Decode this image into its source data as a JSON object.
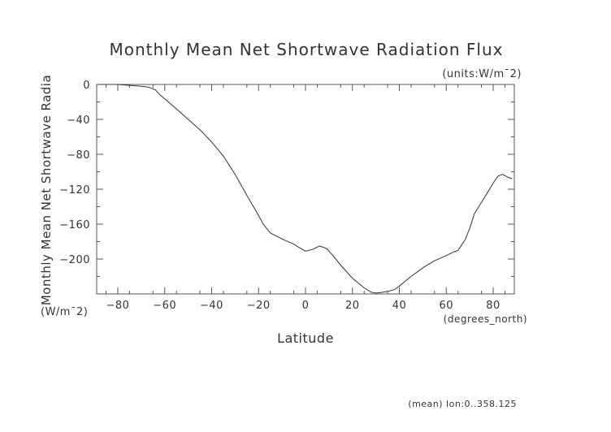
{
  "chart_data": {
    "type": "line",
    "title": "Monthly Mean Net Shortwave Radiation Flux",
    "units_note": "(units:W/m¯2)",
    "xlabel": "Latitude",
    "xunits": "(degrees_north)",
    "ylabel": "Monthly Mean Net Shortwave Radia",
    "yunits": "(W/m¯2)",
    "footnote": "(mean) lon:0..358.125",
    "xlim": [
      -89,
      89
    ],
    "ylim": [
      -240,
      0
    ],
    "xticks": [
      -80,
      -60,
      -40,
      -20,
      0,
      20,
      40,
      60,
      80
    ],
    "yticks": [
      0,
      -40,
      -80,
      -120,
      -160,
      -200
    ],
    "grid": false,
    "series": [
      {
        "x": [
          -88,
          -80,
          -75,
          -70,
          -67,
          -64,
          -62,
          -55,
          -50,
          -45,
          -40,
          -35,
          -30,
          -25,
          -20,
          -18,
          -15,
          -10,
          -5,
          -2,
          0,
          3,
          6,
          9,
          12,
          15,
          20,
          25,
          28,
          30,
          33,
          35,
          38,
          40,
          45,
          50,
          55,
          60,
          63,
          65,
          68,
          70,
          72,
          75,
          78,
          80,
          82,
          84,
          86,
          88
        ],
        "values": [
          0,
          0,
          -1,
          -2,
          -3,
          -6,
          -12,
          -28,
          -40,
          -52,
          -66,
          -82,
          -103,
          -127,
          -150,
          -160,
          -170,
          -177,
          -183,
          -188,
          -191,
          -189,
          -185,
          -188,
          -197,
          -207,
          -222,
          -233,
          -238,
          -239,
          -238,
          -237,
          -235,
          -231,
          -220,
          -210,
          -202,
          -196,
          -192,
          -190,
          -178,
          -165,
          -148,
          -135,
          -122,
          -113,
          -105,
          -103,
          -106,
          -108
        ]
      }
    ]
  }
}
